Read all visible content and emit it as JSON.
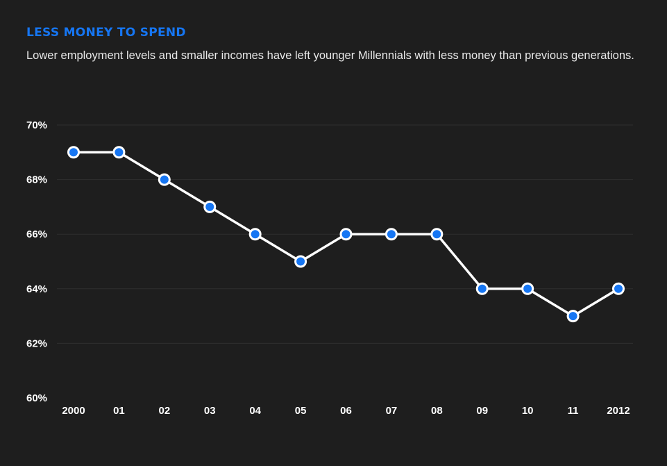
{
  "header": {
    "title": "LESS MONEY TO SPEND",
    "subtitle": "Lower employment levels and smaller incomes have left younger Millennials with less money than previous generations."
  },
  "colors": {
    "background": "#1e1e1e",
    "accent": "#1676f3",
    "line": "#ffffff",
    "grid": "#2e2e2e"
  },
  "chart_data": {
    "type": "line",
    "title": "LESS MONEY TO SPEND",
    "subtitle": "Lower employment levels and smaller incomes have left younger Millennials with less money than previous generations.",
    "xlabel": "",
    "ylabel": "",
    "categories": [
      "2000",
      "01",
      "02",
      "03",
      "04",
      "05",
      "06",
      "07",
      "08",
      "09",
      "10",
      "11",
      "2012"
    ],
    "series": [
      {
        "values": [
          69,
          69,
          68,
          67,
          66,
          65,
          66,
          66,
          66,
          64,
          64,
          63,
          64
        ]
      }
    ],
    "ylim": [
      60,
      70
    ],
    "yticks": [
      60,
      62,
      64,
      66,
      68,
      70
    ],
    "ytick_labels": [
      "60%",
      "62%",
      "64%",
      "66%",
      "68%",
      "70%"
    ],
    "grid": true,
    "legend": "none"
  }
}
